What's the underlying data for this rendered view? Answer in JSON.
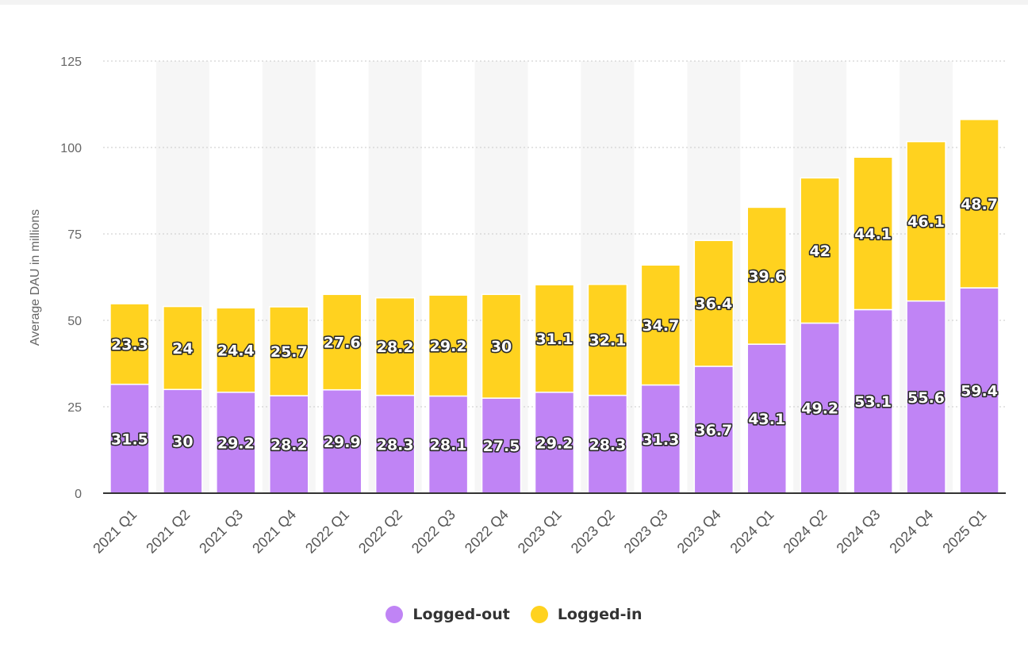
{
  "chart_data": {
    "type": "bar",
    "stacked": true,
    "title": "",
    "xlabel": "",
    "ylabel": "Average DAU in millions",
    "ylim": [
      0,
      125
    ],
    "yticks": [
      0,
      25,
      50,
      75,
      100,
      125
    ],
    "grid": true,
    "legend_position": "bottom-center",
    "categories": [
      "2021 Q1",
      "2021 Q2",
      "2021 Q3",
      "2021 Q4",
      "2022 Q1",
      "2022 Q2",
      "2022 Q3",
      "2022 Q4",
      "2023 Q1",
      "2023 Q2",
      "2023 Q3",
      "2023 Q4",
      "2024 Q1",
      "2024 Q2",
      "2024 Q3",
      "2024 Q4",
      "2025 Q1"
    ],
    "series": [
      {
        "name": "Logged-out",
        "color": "#c084f5",
        "values": [
          31.5,
          30,
          29.2,
          28.2,
          29.9,
          28.3,
          28.1,
          27.5,
          29.2,
          28.3,
          31.3,
          36.7,
          43.1,
          49.2,
          53.1,
          55.6,
          59.4
        ]
      },
      {
        "name": "Logged-in",
        "color": "#ffd21f",
        "values": [
          23.3,
          24,
          24.4,
          25.7,
          27.6,
          28.2,
          29.2,
          30,
          31.1,
          32.1,
          34.7,
          36.4,
          39.6,
          42,
          44.1,
          46.1,
          48.7
        ]
      }
    ]
  },
  "legend": {
    "items": [
      {
        "label": "Logged-out",
        "color": "#c084f5"
      },
      {
        "label": "Logged-in",
        "color": "#ffd21f"
      }
    ]
  }
}
